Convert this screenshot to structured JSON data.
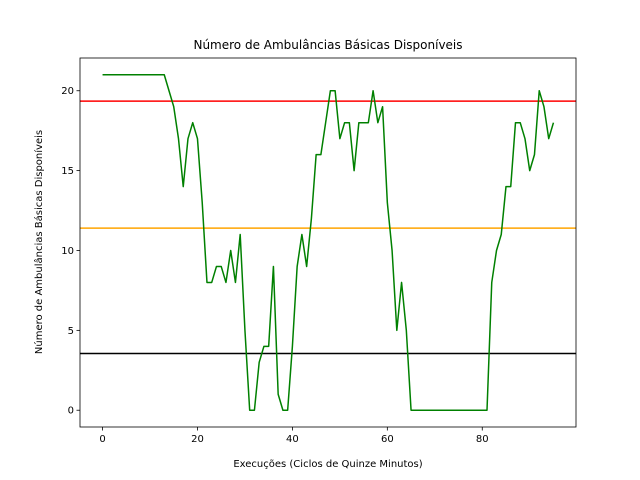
{
  "chart_data": {
    "type": "line",
    "title": "Número de Ambulâncias Básicas Disponíveis",
    "xlabel": "Execuções (Ciclos de Quinze Minutos)",
    "ylabel": "Número de Ambulâncias Básicas Disponíveis",
    "xlim": [
      -4.75,
      99.75
    ],
    "ylim": [
      -1.05,
      22.05
    ],
    "xticks": [
      0,
      20,
      40,
      60,
      80
    ],
    "yticks": [
      0,
      5,
      10,
      15,
      20
    ],
    "grid": false,
    "series": [
      {
        "color": "#008000",
        "x": [
          0,
          1,
          2,
          3,
          4,
          5,
          6,
          7,
          8,
          9,
          10,
          11,
          12,
          13,
          14,
          15,
          16,
          17,
          18,
          19,
          20,
          21,
          22,
          23,
          24,
          25,
          26,
          27,
          28,
          29,
          30,
          31,
          32,
          33,
          34,
          35,
          36,
          37,
          38,
          39,
          40,
          41,
          42,
          43,
          44,
          45,
          46,
          47,
          48,
          49,
          50,
          51,
          52,
          53,
          54,
          55,
          56,
          57,
          58,
          59,
          60,
          61,
          62,
          63,
          64,
          65,
          66,
          67,
          68,
          69,
          70,
          71,
          72,
          73,
          74,
          75,
          76,
          77,
          78,
          79,
          80,
          81,
          82,
          83,
          84,
          85,
          86,
          87,
          88,
          89,
          90,
          91,
          92,
          93,
          94,
          95
        ],
        "y": [
          21,
          21,
          21,
          21,
          21,
          21,
          21,
          21,
          21,
          21,
          21,
          21,
          21,
          21,
          20,
          19,
          17,
          14,
          17,
          18,
          17,
          13,
          8,
          8,
          9,
          9,
          8,
          10,
          8,
          11,
          5,
          0,
          0,
          3,
          4,
          4,
          9,
          1,
          0,
          0,
          4,
          9,
          11,
          9,
          12,
          16,
          16,
          18,
          20,
          20,
          17,
          18,
          18,
          15,
          18,
          18,
          18,
          20,
          18,
          19,
          13,
          10,
          5,
          8,
          5,
          0,
          0,
          0,
          0,
          0,
          0,
          0,
          0,
          0,
          0,
          0,
          0,
          0,
          0,
          0,
          0,
          0,
          8,
          10,
          11,
          14,
          14,
          18,
          18,
          17,
          15,
          16,
          20,
          19,
          17,
          18
        ]
      }
    ],
    "hlines": [
      {
        "y": 19.35,
        "color": "#ff0000"
      },
      {
        "y": 11.4,
        "color": "#ffa500"
      },
      {
        "y": 3.55,
        "color": "#000000"
      }
    ]
  }
}
